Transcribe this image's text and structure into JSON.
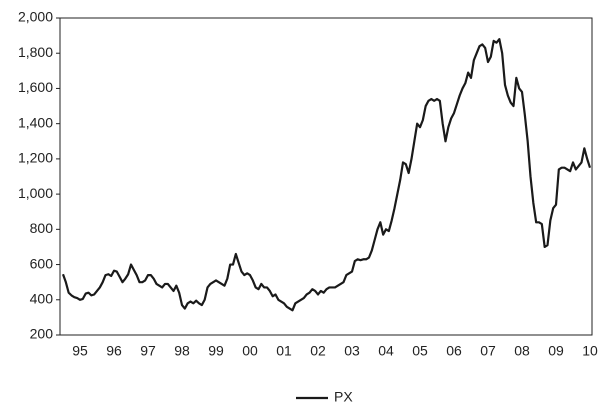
{
  "chart_data": {
    "type": "line",
    "categories": [
      null,
      null,
      null,
      null,
      null,
      null,
      "95",
      null,
      null,
      null,
      null,
      null,
      null,
      null,
      null,
      null,
      null,
      null,
      "96",
      null,
      null,
      null,
      null,
      null,
      null,
      null,
      null,
      null,
      null,
      null,
      "97",
      null,
      null,
      null,
      null,
      null,
      null,
      null,
      null,
      null,
      null,
      null,
      "98",
      null,
      null,
      null,
      null,
      null,
      null,
      null,
      null,
      null,
      null,
      null,
      "99",
      null,
      null,
      null,
      null,
      null,
      null,
      null,
      null,
      null,
      null,
      null,
      "00",
      null,
      null,
      null,
      null,
      null,
      null,
      null,
      null,
      null,
      null,
      null,
      "01",
      null,
      null,
      null,
      null,
      null,
      null,
      null,
      null,
      null,
      null,
      null,
      "02",
      null,
      null,
      null,
      null,
      null,
      null,
      null,
      null,
      null,
      null,
      null,
      "03",
      null,
      null,
      null,
      null,
      null,
      null,
      null,
      null,
      null,
      null,
      null,
      "04",
      null,
      null,
      null,
      null,
      null,
      null,
      null,
      null,
      null,
      null,
      null,
      "05",
      null,
      null,
      null,
      null,
      null,
      null,
      null,
      null,
      null,
      null,
      null,
      "06",
      null,
      null,
      null,
      null,
      null,
      null,
      null,
      null,
      null,
      null,
      null,
      "07",
      null,
      null,
      null,
      null,
      null,
      null,
      null,
      null,
      null,
      null,
      null,
      "08",
      null,
      null,
      null,
      null,
      null,
      null,
      null,
      null,
      null,
      null,
      null,
      "09",
      null,
      null,
      null,
      null,
      null,
      null,
      null,
      null,
      null,
      null,
      null,
      "10"
    ],
    "series": [
      {
        "name": "PX",
        "color": "#1a1a1a",
        "values": [
          545,
          500,
          440,
          425,
          415,
          410,
          400,
          405,
          435,
          440,
          425,
          430,
          450,
          470,
          500,
          540,
          545,
          535,
          565,
          560,
          530,
          500,
          520,
          545,
          600,
          570,
          540,
          500,
          500,
          510,
          540,
          540,
          520,
          490,
          480,
          470,
          490,
          490,
          470,
          450,
          480,
          440,
          370,
          350,
          380,
          390,
          380,
          395,
          380,
          370,
          400,
          470,
          490,
          500,
          510,
          500,
          490,
          480,
          520,
          600,
          600,
          660,
          610,
          560,
          540,
          550,
          540,
          510,
          470,
          460,
          490,
          470,
          470,
          450,
          420,
          430,
          400,
          390,
          380,
          360,
          350,
          340,
          380,
          390,
          400,
          410,
          430,
          440,
          460,
          450,
          430,
          450,
          440,
          460,
          470,
          470,
          470,
          480,
          490,
          500,
          540,
          550,
          560,
          620,
          630,
          625,
          630,
          630,
          640,
          680,
          740,
          800,
          840,
          770,
          800,
          790,
          850,
          920,
          1000,
          1080,
          1180,
          1170,
          1120,
          1200,
          1300,
          1400,
          1380,
          1420,
          1500,
          1530,
          1540,
          1530,
          1540,
          1530,
          1400,
          1300,
          1380,
          1430,
          1460,
          1510,
          1560,
          1600,
          1630,
          1690,
          1660,
          1760,
          1800,
          1840,
          1850,
          1830,
          1750,
          1780,
          1870,
          1860,
          1880,
          1800,
          1620,
          1560,
          1520,
          1500,
          1660,
          1600,
          1580,
          1450,
          1300,
          1100,
          950,
          840,
          840,
          830,
          700,
          710,
          850,
          920,
          940,
          1140,
          1150,
          1150,
          1140,
          1130,
          1180,
          1140,
          1160,
          1180,
          1260,
          1200,
          1150
        ]
      }
    ],
    "ylim": [
      200,
      2000
    ],
    "yticks": [
      200,
      400,
      600,
      800,
      {
        "value": 1000,
        "label": "1,000"
      },
      {
        "value": 1200,
        "label": "1,200"
      },
      {
        "value": 1400,
        "label": "1,400"
      },
      {
        "value": 1600,
        "label": "1,600"
      },
      {
        "value": 1800,
        "label": "1,800"
      },
      {
        "value": 2000,
        "label": "2,000"
      }
    ],
    "legend": "bottom"
  }
}
